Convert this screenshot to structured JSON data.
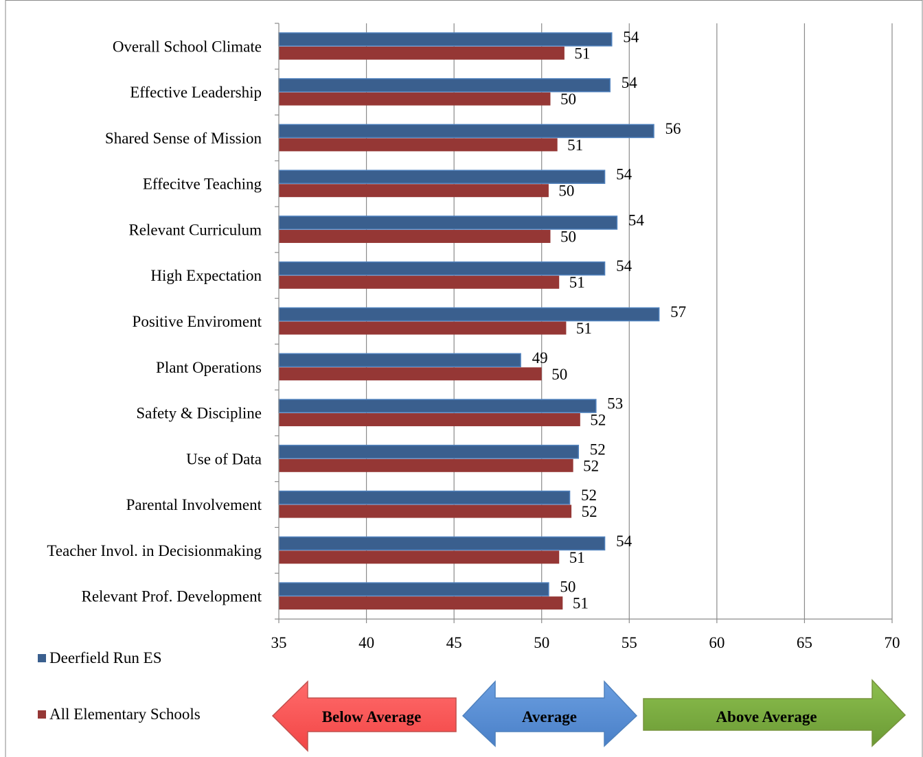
{
  "chart_data": {
    "type": "bar",
    "orientation": "horizontal",
    "categories": [
      "Overall School Climate",
      "Effective Leadership",
      "Shared Sense of Mission",
      "Effecitve Teaching",
      "Relevant Curriculum",
      "High Expectation",
      "Positive Enviroment",
      "Plant Operations",
      "Safety & Discipline",
      "Use of Data",
      "Parental Involvement",
      "Teacher Invol. in Decisionmaking",
      "Relevant Prof. Development"
    ],
    "series": [
      {
        "name": "Deerfield Run ES",
        "color": "#3A5F8E",
        "values": [
          54.0,
          53.9,
          56.4,
          53.6,
          54.3,
          53.6,
          56.7,
          48.8,
          53.1,
          52.1,
          51.6,
          53.6,
          50.4
        ],
        "labels": [
          "54",
          "54",
          "56",
          "54",
          "54",
          "54",
          "57",
          "49",
          "53",
          "52",
          "52",
          "54",
          "50"
        ]
      },
      {
        "name": "All Elementary Schools",
        "color": "#953735",
        "values": [
          51.3,
          50.5,
          50.9,
          50.4,
          50.5,
          51.0,
          51.4,
          50.0,
          52.2,
          51.8,
          51.7,
          51.0,
          51.2
        ],
        "labels": [
          "51",
          "50",
          "51",
          "50",
          "50",
          "51",
          "51",
          "50",
          "52",
          "52",
          "52",
          "51",
          "51"
        ]
      }
    ],
    "xlim": [
      35,
      70
    ],
    "xticks": [
      "35",
      "40",
      "45",
      "50",
      "55",
      "60",
      "65",
      "70"
    ],
    "title": "",
    "xlabel": "",
    "ylabel": "",
    "grid": "vertical",
    "legend": "bottom-left",
    "bands": [
      {
        "label": "Below Average",
        "color": "#FF5050",
        "direction": "left"
      },
      {
        "label": "Average",
        "color": "#558ED5",
        "direction": "both"
      },
      {
        "label": "Above Average",
        "color": "#77A540",
        "direction": "right"
      }
    ]
  }
}
